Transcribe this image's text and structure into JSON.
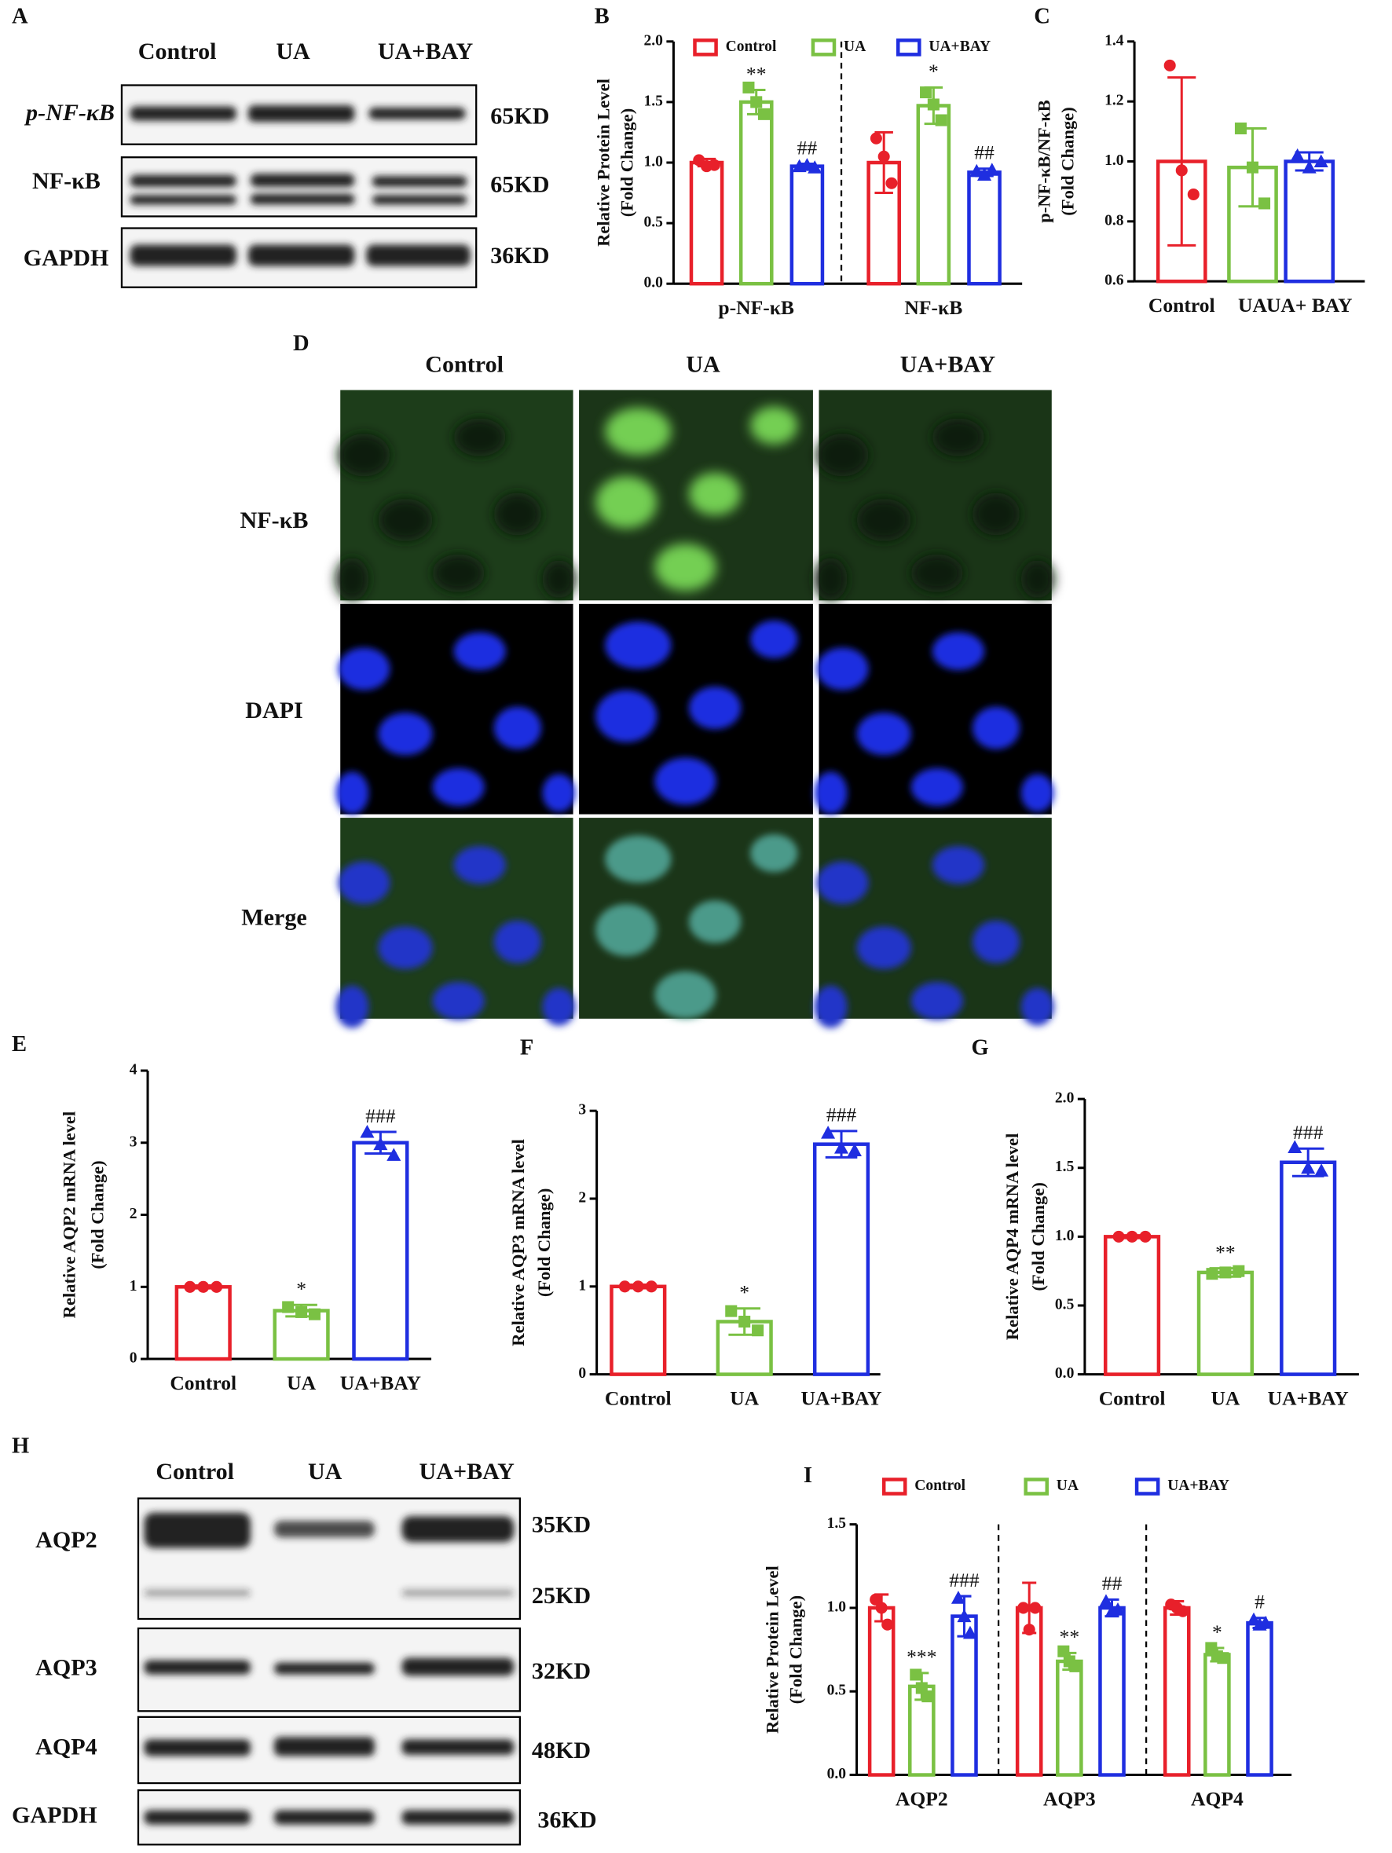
{
  "panel_labels": [
    "A",
    "B",
    "C",
    "D",
    "E",
    "F",
    "G",
    "H",
    "I"
  ],
  "blot_A": {
    "lanes": [
      "Control",
      "UA",
      "UA+BAY"
    ],
    "rows": [
      {
        "label": "p-NF-κB",
        "size": "65KD"
      },
      {
        "label": "NF-κB",
        "size": "65KD"
      },
      {
        "label": "GAPDH",
        "size": "36KD"
      }
    ]
  },
  "immunofluorescence_D": {
    "columns": [
      "Control",
      "UA",
      "UA+BAY"
    ],
    "rows": [
      "NF-κB",
      "DAPI",
      "Merge"
    ]
  },
  "blot_H": {
    "lanes": [
      "Control",
      "UA",
      "UA+BAY"
    ],
    "rows": [
      {
        "label": "AQP2",
        "sizes": [
          "35KD",
          "25KD"
        ]
      },
      {
        "label": "AQP3",
        "sizes": [
          "32KD"
        ]
      },
      {
        "label": "AQP4",
        "sizes": [
          "48KD"
        ]
      },
      {
        "label": "GAPDH",
        "sizes": [
          "36KD"
        ]
      }
    ]
  },
  "chart_data": [
    {
      "type": "grouped_bar",
      "categories": [
        "p-NF-κB",
        "NF-κB"
      ],
      "ylabel": [
        "Relative Protein Level",
        "(Fold Change)"
      ],
      "ylim": [
        0,
        2
      ],
      "yticks": [
        {
          "value": 0,
          "label": "0.0"
        },
        0.5,
        {
          "value": 1,
          "label": "1.0"
        },
        1.5,
        {
          "value": 2,
          "label": "2.0"
        }
      ],
      "legend": "top",
      "series": [
        {
          "name": "Control",
          "color": "#e8202a",
          "values": [
            1.0,
            1.0
          ],
          "errors": [
            0.03,
            0.25
          ],
          "points": [
            [
              1.02,
              0.97,
              0.98
            ],
            [
              1.2,
              1.05,
              0.83
            ]
          ]
        },
        {
          "name": "UA",
          "color": "#7ac143",
          "values": [
            1.5,
            1.47
          ],
          "errors": [
            0.1,
            0.15
          ],
          "points": [
            [
              1.62,
              1.5,
              1.4
            ],
            [
              1.58,
              1.48,
              1.35
            ]
          ],
          "annotations": [
            "**",
            "*"
          ]
        },
        {
          "name": "UA+BAY",
          "color": "#1f2ee0",
          "values": [
            0.97,
            0.92
          ],
          "errors": [
            0.02,
            0.03
          ],
          "points": [
            [
              0.97,
              0.98,
              0.96
            ],
            [
              0.93,
              0.9,
              0.94
            ]
          ],
          "annotations": [
            "##",
            "##"
          ]
        }
      ]
    },
    {
      "type": "bar",
      "categories": [
        "Control",
        "UA",
        "UA+ BAY"
      ],
      "ylabel": [
        "p-NF-κB/NF-κB",
        "(Fold Change)"
      ],
      "ylim": [
        0.6,
        1.4
      ],
      "yticks": [
        0.6,
        0.8,
        {
          "value": 1,
          "label": "1.0"
        },
        1.2,
        1.4
      ],
      "colors": [
        "#e8202a",
        "#7ac143",
        "#1f2ee0"
      ],
      "values": [
        1.0,
        0.98,
        1.0
      ],
      "errors": [
        0.28,
        0.13,
        0.03
      ],
      "points": [
        [
          1.32,
          0.97,
          0.89
        ],
        [
          1.11,
          0.98,
          0.86
        ],
        [
          1.02,
          0.98,
          1.0
        ]
      ]
    },
    {
      "type": "bar",
      "categories": [
        "Control",
        "UA",
        "UA+BAY"
      ],
      "ylabel": [
        "Relative AQP2 mRNA level",
        "(Fold Change)"
      ],
      "ylim": [
        0,
        4
      ],
      "yticks": [
        0,
        1,
        2,
        3,
        4
      ],
      "colors": [
        "#e8202a",
        "#7ac143",
        "#1f2ee0"
      ],
      "values": [
        1.0,
        0.67,
        3.0
      ],
      "errors": [
        0.02,
        0.08,
        0.15
      ],
      "points": [
        [
          1.0,
          1.0,
          1.0
        ],
        [
          0.72,
          0.65,
          0.62
        ],
        [
          3.15,
          2.98,
          2.83
        ]
      ],
      "annotations": [
        null,
        "*",
        "###"
      ]
    },
    {
      "type": "bar",
      "categories": [
        "Control",
        "UA",
        "UA+BAY"
      ],
      "ylabel": [
        "Relative AQP3 mRNA level",
        "(Fold Change)"
      ],
      "ylim": [
        0,
        3
      ],
      "yticks": [
        0,
        1,
        2,
        3
      ],
      "colors": [
        "#e8202a",
        "#7ac143",
        "#1f2ee0"
      ],
      "values": [
        1.0,
        0.6,
        2.62
      ],
      "errors": [
        0.02,
        0.15,
        0.15
      ],
      "points": [
        [
          1.0,
          1.0,
          1.0
        ],
        [
          0.72,
          0.6,
          0.5
        ],
        [
          2.75,
          2.58,
          2.55
        ]
      ],
      "annotations": [
        null,
        "*",
        "###"
      ]
    },
    {
      "type": "bar",
      "categories": [
        "Control",
        "UA",
        "UA+BAY"
      ],
      "ylabel": [
        "Relative AQP4 mRNA level",
        "(Fold Change)"
      ],
      "ylim": [
        0,
        2
      ],
      "yticks": [
        {
          "value": 0,
          "label": "0.0"
        },
        0.5,
        {
          "value": 1,
          "label": "1.0"
        },
        1.5,
        {
          "value": 2,
          "label": "2.0"
        }
      ],
      "colors": [
        "#e8202a",
        "#7ac143",
        "#1f2ee0"
      ],
      "values": [
        1.0,
        0.74,
        1.54
      ],
      "errors": [
        0.01,
        0.03,
        0.1
      ],
      "points": [
        [
          1.0,
          1.0,
          1.0
        ],
        [
          0.73,
          0.74,
          0.75
        ],
        [
          1.65,
          1.5,
          1.48
        ]
      ],
      "annotations": [
        null,
        "**",
        "###"
      ]
    },
    {
      "type": "grouped_bar",
      "categories": [
        "AQP2",
        "AQP3",
        "AQP4"
      ],
      "ylabel": [
        "Relative Protein Level",
        "(Fold Change)"
      ],
      "ylim": [
        0,
        1.5
      ],
      "yticks": [
        {
          "value": 0,
          "label": "0.0"
        },
        0.5,
        {
          "value": 1,
          "label": "1.0"
        },
        1.5
      ],
      "legend": "top",
      "series": [
        {
          "name": "Control",
          "color": "#e8202a",
          "values": [
            1.0,
            1.0,
            1.0
          ],
          "errors": [
            0.08,
            0.15,
            0.04
          ],
          "points": [
            [
              1.05,
              1.0,
              0.9
            ],
            [
              1.0,
              0.87,
              1.0
            ],
            [
              1.02,
              1.0,
              0.98
            ]
          ]
        },
        {
          "name": "UA",
          "color": "#7ac143",
          "values": [
            0.53,
            0.68,
            0.72
          ],
          "errors": [
            0.08,
            0.05,
            0.04
          ],
          "points": [
            [
              0.6,
              0.52,
              0.47
            ],
            [
              0.74,
              0.68,
              0.65
            ],
            [
              0.76,
              0.71,
              0.7
            ]
          ],
          "annotations": [
            "***",
            "**",
            "*"
          ]
        },
        {
          "name": "UA+BAY",
          "color": "#1f2ee0",
          "values": [
            0.95,
            1.0,
            0.91
          ],
          "errors": [
            0.12,
            0.05,
            0.03
          ],
          "points": [
            [
              1.06,
              0.95,
              0.85
            ],
            [
              1.04,
              0.98,
              0.99
            ],
            [
              0.93,
              0.9,
              0.91
            ]
          ],
          "annotations": [
            "###",
            "##",
            "#"
          ]
        }
      ]
    }
  ]
}
